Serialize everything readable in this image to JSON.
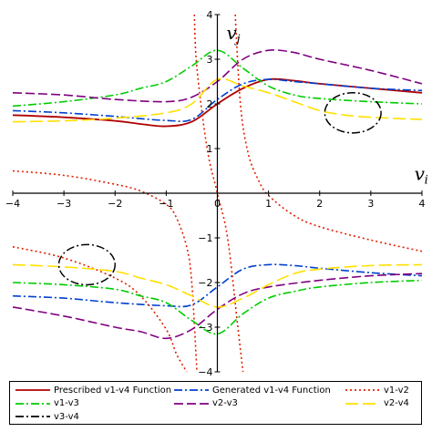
{
  "chart_data": {
    "type": "line",
    "axis_labels": {
      "x": "v",
      "x_sub": "i",
      "y": "v",
      "y_sub": "j"
    },
    "xlim": [
      -4,
      4
    ],
    "ylim": [
      -4,
      4
    ],
    "x_ticks": [
      -4,
      -3,
      -2,
      -1,
      1,
      2,
      3,
      4
    ],
    "y_ticks": [
      -4,
      -3,
      -2,
      -1,
      1,
      2,
      3,
      4
    ],
    "x_tick_labels": [
      "−4",
      "−3",
      "−2",
      "−1",
      "1",
      "2",
      "3",
      "4"
    ],
    "y_tick_labels": [
      "−4",
      "−3",
      "−2",
      "−1",
      "1",
      "2",
      "3",
      "4"
    ],
    "origin_label": "0",
    "grid": false,
    "legend_position": "bottom",
    "series": [
      {
        "name": "Prescribed v1-v4 Function",
        "color": "#b00000",
        "dash": "solid",
        "branches": [
          {
            "x": [
              -4,
              -3,
              -2,
              -1.5,
              -1,
              -0.5,
              0,
              0.5,
              1,
              1.5,
              2,
              3,
              4
            ],
            "y": [
              1.75,
              1.7,
              1.62,
              1.55,
              1.5,
              1.6,
              2.0,
              2.35,
              2.55,
              2.52,
              2.45,
              2.35,
              2.25
            ]
          }
        ]
      },
      {
        "name": "Generated v1-v4 Function",
        "color": "#0040d0",
        "dash": "dashdot",
        "branches": [
          {
            "x": [
              -4,
              -3,
              -2,
              -1.5,
              -1,
              -0.5,
              0,
              0.5,
              1,
              1.5,
              2,
              3,
              4
            ],
            "y": [
              1.85,
              1.8,
              1.72,
              1.67,
              1.63,
              1.65,
              2.1,
              2.45,
              2.55,
              2.5,
              2.45,
              2.35,
              2.3
            ]
          },
          {
            "x": [
              -4,
              -3,
              -2,
              -1,
              -0.5,
              0,
              0.5,
              1,
              1.5,
              2,
              3,
              4
            ],
            "y": [
              -2.3,
              -2.35,
              -2.45,
              -2.52,
              -2.5,
              -2.1,
              -1.7,
              -1.6,
              -1.62,
              -1.68,
              -1.78,
              -1.85
            ]
          }
        ]
      },
      {
        "name": "v1-v2",
        "color": "#e02000",
        "dash": "dotted",
        "branches": [
          {
            "x": [
              -4,
              -3,
              -2,
              -1.5,
              -1,
              -0.8,
              -0.6,
              -0.5,
              -0.4
            ],
            "y": [
              0.5,
              0.4,
              0.2,
              0.05,
              -0.25,
              -0.55,
              -1.2,
              -2.0,
              -4
            ]
          },
          {
            "x": [
              -4,
              -3,
              -2,
              -1.5,
              -1,
              -0.8,
              -0.6
            ],
            "y": [
              -1.2,
              -1.45,
              -1.9,
              -2.3,
              -3.05,
              -3.6,
              -4
            ]
          },
          {
            "x": [
              0.35,
              0.45,
              0.6,
              0.8,
              1.0,
              1.5,
              2,
              3,
              4
            ],
            "y": [
              4,
              2.0,
              0.9,
              0.3,
              -0.05,
              -0.5,
              -0.75,
              -1.05,
              -1.3
            ]
          },
          {
            "x": [
              -0.45,
              -0.4,
              -0.2,
              0,
              0.2,
              0.4,
              0.5
            ],
            "y": [
              4,
              2.8,
              1.0,
              0.0,
              -1.0,
              -3.0,
              -4
            ]
          }
        ]
      },
      {
        "name": "v1-v3",
        "color": "#00cc00",
        "dash": "dashdot",
        "branches": [
          {
            "x": [
              -4,
              -3,
              -2,
              -1.5,
              -1,
              -0.5,
              0,
              0.5,
              1,
              1.5,
              2,
              3,
              4
            ],
            "y": [
              1.95,
              2.05,
              2.2,
              2.35,
              2.5,
              2.85,
              3.2,
              2.8,
              2.4,
              2.2,
              2.12,
              2.05,
              2.0
            ]
          },
          {
            "x": [
              -4,
              -3,
              -2,
              -1.5,
              -1,
              -0.5,
              0,
              0.5,
              1,
              1.5,
              2,
              3,
              4
            ],
            "y": [
              -2.0,
              -2.05,
              -2.15,
              -2.3,
              -2.45,
              -2.85,
              -3.15,
              -2.7,
              -2.35,
              -2.2,
              -2.1,
              -2.0,
              -1.95
            ]
          }
        ]
      },
      {
        "name": "v2-v3",
        "color": "#800080",
        "dash": "dashed",
        "branches": [
          {
            "x": [
              -4,
              -3,
              -2,
              -1,
              -0.5,
              0,
              0.5,
              1,
              1.5,
              2,
              3,
              4
            ],
            "y": [
              2.25,
              2.2,
              2.1,
              2.05,
              2.15,
              2.5,
              3.0,
              3.2,
              3.15,
              3.0,
              2.75,
              2.45
            ]
          },
          {
            "x": [
              -4,
              -3,
              -2,
              -1.5,
              -1,
              -0.5,
              0,
              0.5,
              1,
              2,
              3,
              4
            ],
            "y": [
              -2.55,
              -2.75,
              -3.0,
              -3.1,
              -3.25,
              -3.05,
              -2.6,
              -2.25,
              -2.1,
              -1.95,
              -1.85,
              -1.8
            ]
          }
        ]
      },
      {
        "name": "v2-v4",
        "color": "#ffe000",
        "dash": "longdash",
        "branches": [
          {
            "x": [
              -4,
              -3,
              -2,
              -1,
              -0.5,
              0,
              0.5,
              1,
              1.5,
              2,
              2.5,
              3,
              4
            ],
            "y": [
              1.6,
              1.62,
              1.68,
              1.8,
              2.0,
              2.55,
              2.4,
              2.25,
              2.05,
              1.85,
              1.75,
              1.7,
              1.65
            ]
          },
          {
            "x": [
              -4,
              -3,
              -2,
              -1.5,
              -1,
              -0.5,
              0,
              0.5,
              1,
              1.5,
              2,
              3,
              4
            ],
            "y": [
              -1.6,
              -1.65,
              -1.75,
              -1.9,
              -2.05,
              -2.3,
              -2.55,
              -2.35,
              -2.05,
              -1.8,
              -1.7,
              -1.62,
              -1.6
            ]
          }
        ]
      }
    ],
    "annotations": [
      {
        "type": "ellipse",
        "name": "v3-v4",
        "color": "#000000",
        "dash": "dashdot",
        "cx": 2.65,
        "cy": 1.8,
        "rx": 0.55,
        "ry": 0.45
      },
      {
        "type": "ellipse",
        "name": "v3-v4",
        "color": "#000000",
        "dash": "dashdot",
        "cx": -2.55,
        "cy": -1.6,
        "rx": 0.55,
        "ry": 0.45
      }
    ],
    "legend": [
      {
        "label": "Prescribed v1-v4 Function",
        "color": "#b00000",
        "dash": "solid"
      },
      {
        "label": "Generated v1-v4 Function",
        "color": "#0040d0",
        "dash": "dashdot"
      },
      {
        "label": "v1-v2",
        "color": "#e02000",
        "dash": "dotted"
      },
      {
        "label": "v1-v3",
        "color": "#00cc00",
        "dash": "dashdot"
      },
      {
        "label": "v2-v3",
        "color": "#800080",
        "dash": "dashed"
      },
      {
        "label": "v2-v4",
        "color": "#ffe000",
        "dash": "longdash"
      },
      {
        "label": "v3-v4",
        "color": "#000000",
        "dash": "dashdot"
      }
    ]
  }
}
